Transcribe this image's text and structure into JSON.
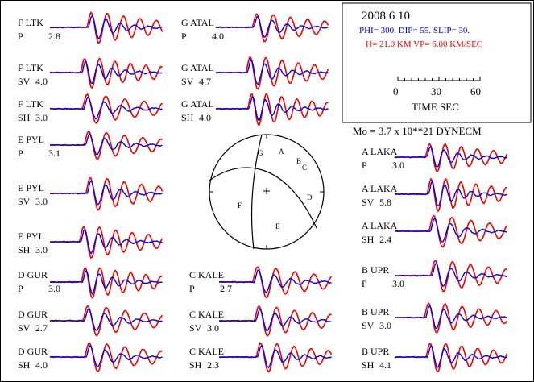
{
  "info_box": {
    "date": "2008  6 10",
    "mechanism": "PHI= 300. DIP= 55. SLIP=  30.",
    "depth_velocity": "H= 21.0 KM  VP= 6.00 KM/SEC",
    "scale_ticks": [
      "0",
      "30",
      "60"
    ],
    "scale_label": "TIME  SEC"
  },
  "moment": "Mo =  3.7 x 10**21 DYNECM",
  "colors": {
    "observed": "#0000ee",
    "synthetic": "#ee0000",
    "text": "#000000"
  },
  "traces": [
    {
      "station": "F LTK",
      "phase": "P",
      "weight": "2.8"
    },
    {
      "station": "F LTK",
      "phase": "SV",
      "weight": "4.0"
    },
    {
      "station": "F LTK",
      "phase": "SH",
      "weight": "3.0"
    },
    {
      "station": "E PYL",
      "phase": "P",
      "weight": "3.1"
    },
    {
      "station": "E PYL",
      "phase": "SV",
      "weight": "3.0"
    },
    {
      "station": "E PYL",
      "phase": "SH",
      "weight": "3.0"
    },
    {
      "station": "D GUR",
      "phase": "P",
      "weight": "3.0"
    },
    {
      "station": "D GUR",
      "phase": "SV",
      "weight": "2.7"
    },
    {
      "station": "D GUR",
      "phase": "SH",
      "weight": "4.0"
    },
    {
      "station": "G ATAL",
      "phase": "P",
      "weight": "4.0"
    },
    {
      "station": "G ATAL",
      "phase": "SV",
      "weight": "4.7"
    },
    {
      "station": "G ATAL",
      "phase": "SH",
      "weight": "4.0"
    },
    {
      "station": "C KALE",
      "phase": "P",
      "weight": "2.7"
    },
    {
      "station": "C KALE",
      "phase": "SV",
      "weight": "3.0"
    },
    {
      "station": "C KALE",
      "phase": "SH",
      "weight": "2.3"
    },
    {
      "station": "A LAKA",
      "phase": "P",
      "weight": "3.0"
    },
    {
      "station": "A LAKA",
      "phase": "SV",
      "weight": "5.8"
    },
    {
      "station": "A LAKA",
      "phase": "SH",
      "weight": "2.4"
    },
    {
      "station": "B UPR",
      "phase": "P",
      "weight": "3.0"
    },
    {
      "station": "B UPR",
      "phase": "SV",
      "weight": "3.0"
    },
    {
      "station": "B UPR",
      "phase": "SH",
      "weight": "4.1"
    }
  ],
  "beachball": {
    "station_letters": [
      "G",
      "A",
      "B",
      "C",
      "D",
      "F",
      "E"
    ]
  }
}
